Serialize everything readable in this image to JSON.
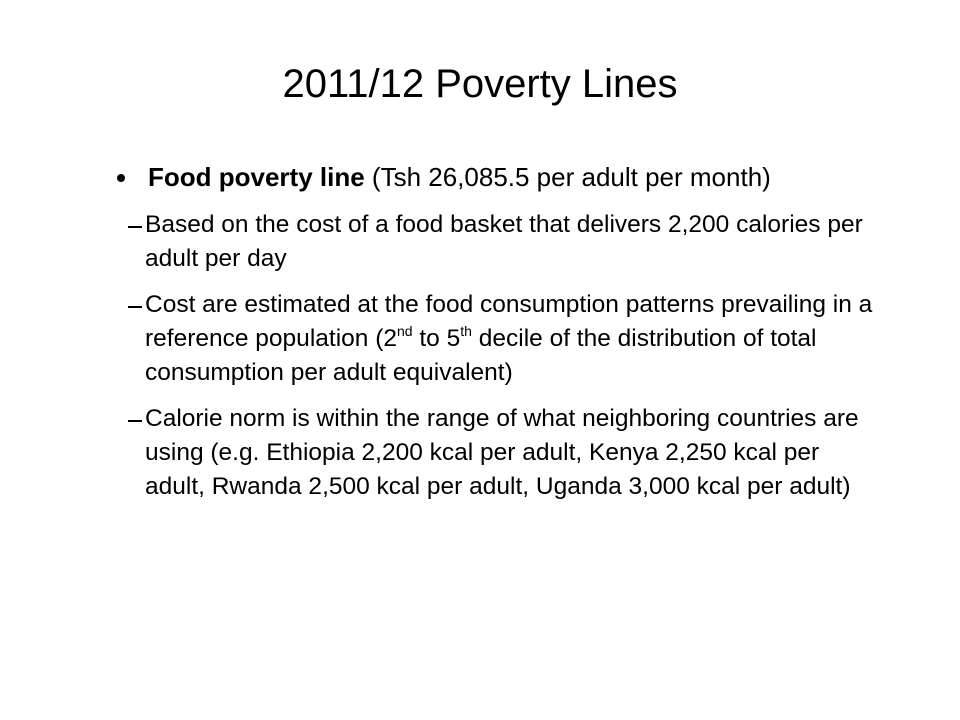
{
  "title": "2011/12 Poverty Lines",
  "bullets": [
    {
      "bold": "Food poverty line",
      "text": " (Tsh 26,085.5 per adult per month)",
      "sub": [
        [
          {
            "t": "Based on the cost of a food basket that delivers 2,200 calories per adult per day"
          }
        ],
        [
          {
            "t": "Cost are estimated at the food consumption patterns prevailing in a reference population (2"
          },
          {
            "sup": "nd"
          },
          {
            "t": " to 5"
          },
          {
            "sup": "th"
          },
          {
            "t": " decile of the distribution of total consumption per adult equivalent)"
          }
        ],
        [
          {
            "t": "Calorie norm is within the range of what neighboring countries are using (e.g. Ethiopia 2,200 kcal per adult, Kenya 2,250 kcal per adult, Rwanda 2,500 kcal per adult, Uganda 3,000 kcal per adult)"
          }
        ]
      ]
    }
  ]
}
